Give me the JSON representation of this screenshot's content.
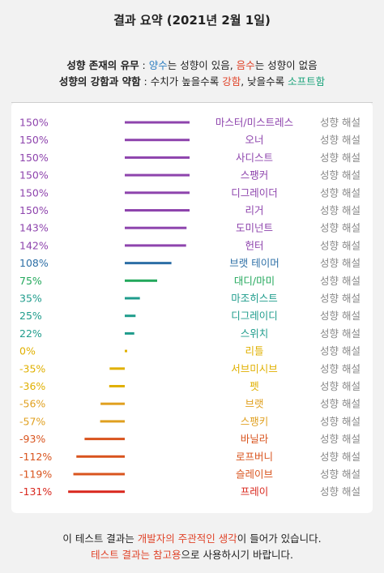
{
  "header": {
    "title": "결과 요약 (2021년 2월 1일)"
  },
  "legend": {
    "line1_a": "성향 존재의 유무",
    "line1_b": " : ",
    "line1_pos": "양수",
    "line1_c": "는 성향이 있음, ",
    "line1_neg": "음수",
    "line1_d": "는 성향이 없음",
    "line2_a": "성향의 강함과 약함",
    "line2_b": " : 수치가 높을수록 ",
    "line2_strong": "강함",
    "line2_c": ", 낮을수록 ",
    "line2_soft": "소프트함"
  },
  "chart_data": {
    "type": "bar",
    "orientation": "horizontal",
    "categories": [
      "마스터/미스트레스",
      "오너",
      "사디스트",
      "스팽커",
      "디그레이더",
      "리거",
      "도미넌트",
      "헌터",
      "브랫 테이머",
      "대디/마미",
      "마조히스트",
      "디그레이디",
      "스위치",
      "리틀",
      "서브미시브",
      "펫",
      "브랫",
      "스팽키",
      "바닐라",
      "로프버니",
      "슬레이브",
      "프레이"
    ],
    "values": [
      150,
      150,
      150,
      150,
      150,
      150,
      143,
      142,
      108,
      75,
      35,
      25,
      22,
      0,
      -35,
      -36,
      -56,
      -57,
      -93,
      -112,
      -119,
      -131
    ],
    "value_labels": [
      "150%",
      "150%",
      "150%",
      "150%",
      "150%",
      "150%",
      "143%",
      "142%",
      "108%",
      "75%",
      "35%",
      "25%",
      "22%",
      "0%",
      "-35%",
      "-36%",
      "-56%",
      "-57%",
      "-93%",
      "-112%",
      "-119%",
      "-131%"
    ],
    "action_label": "성향 해설",
    "unit": "%",
    "colors": [
      "#8e44ad",
      "#8e44ad",
      "#8e44ad",
      "#8e44ad",
      "#8e44ad",
      "#8e44ad",
      "#8e44ad",
      "#8e44ad",
      "#2d6fa6",
      "#23a85c",
      "#1f9c8c",
      "#1f9c8c",
      "#1f9c8c",
      "#e0b000",
      "#e0b000",
      "#e0b000",
      "#e0a020",
      "#e0a020",
      "#d9541e",
      "#d9541e",
      "#d9541e",
      "#d9281e"
    ]
  },
  "footer": {
    "line1_a": "이 테스트 결과는 ",
    "line1_b": "개발자의 주관적인 생각",
    "line1_c": "이 들어가 있습니다.",
    "line2_a": "테스트 결과는 참고용",
    "line2_b": "으로 사용하시기 바랍니다."
  }
}
